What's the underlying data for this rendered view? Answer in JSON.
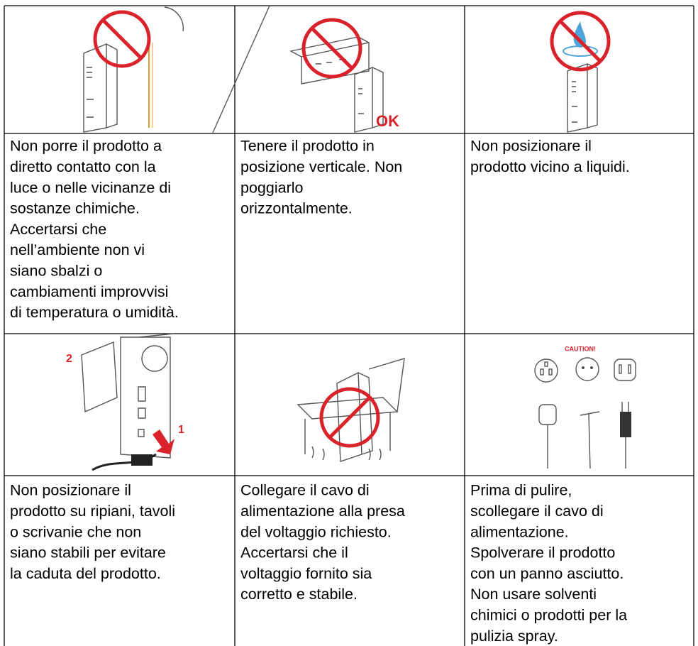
{
  "items": [
    {
      "lines": [
        "Non porre il prodotto a",
        "diretto contatto con la",
        "luce o nelle vicinanze di",
        "sostanze chimiche.",
        "Accertarsi che",
        "nell’ambiente non vi",
        "siano sbalzi o",
        "cambiamenti improvvisi",
        "di temperatura o umidità."
      ]
    },
    {
      "lines": [
        "Tenere il prodotto in",
        "posizione verticale. Non",
        "poggiarlo",
        "orizzontalmente."
      ],
      "labels": [
        "OK"
      ]
    },
    {
      "lines": [
        "Non posizionare il",
        "prodotto vicino a liquidi."
      ]
    },
    {
      "lines": [
        "Non posizionare il",
        "prodotto su ripiani, tavoli",
        "o scrivanie che non",
        "siano stabili per evitare",
        "la caduta del prodotto."
      ],
      "labels": [
        "2",
        "1"
      ]
    },
    {
      "lines": [
        "Collegare il cavo di",
        "alimentazione alla presa",
        "del voltaggio richiesto.",
        "Accertarsi che il",
        "voltaggio fornito sia",
        "corretto e stabile."
      ]
    },
    {
      "lines": [
        "Prima di pulire,",
        "scollegare il cavo di",
        "alimentazione.",
        "Spolverare il prodotto",
        "con un panno asciutto.",
        "Non usare solventi",
        "chimici o prodotti per la",
        "pulizia spray."
      ],
      "labels": [
        "CAUTION!"
      ]
    }
  ]
}
